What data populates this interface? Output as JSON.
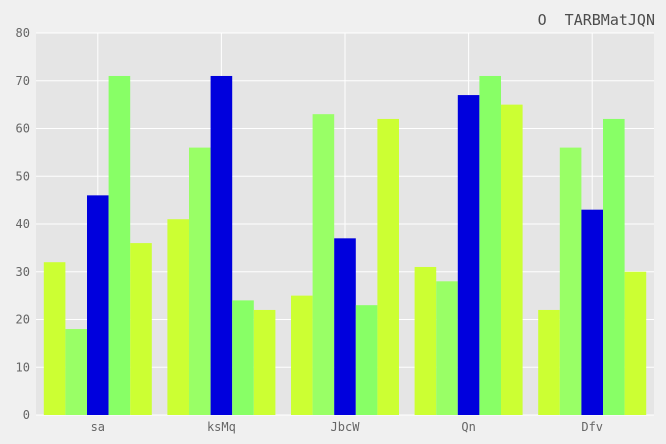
{
  "chart_data": {
    "type": "bar",
    "title": "O  TARBMatJQN",
    "xlabel": "",
    "ylabel": "",
    "categories": [
      "sa",
      "ksMq",
      "JbcW",
      "Qn",
      "Dfv"
    ],
    "ylim": [
      0,
      80
    ],
    "yticks": [
      0,
      10,
      20,
      30,
      40,
      50,
      60,
      70,
      80
    ],
    "grid": true,
    "legend": "none",
    "series": [
      {
        "color": "#ccff33",
        "values": [
          32,
          41,
          25,
          31,
          22
        ]
      },
      {
        "color": "#99ff66",
        "values": [
          18,
          56,
          63,
          28,
          56
        ]
      },
      {
        "color": "#0000dd",
        "values": [
          46,
          71,
          37,
          67,
          43
        ]
      },
      {
        "color": "#88ff66",
        "values": [
          71,
          24,
          23,
          71,
          62
        ]
      },
      {
        "color": "#ccff33",
        "values": [
          36,
          22,
          62,
          65,
          30
        ]
      }
    ],
    "background": "#e5e5e5",
    "page_background": "#f0f0f0"
  }
}
